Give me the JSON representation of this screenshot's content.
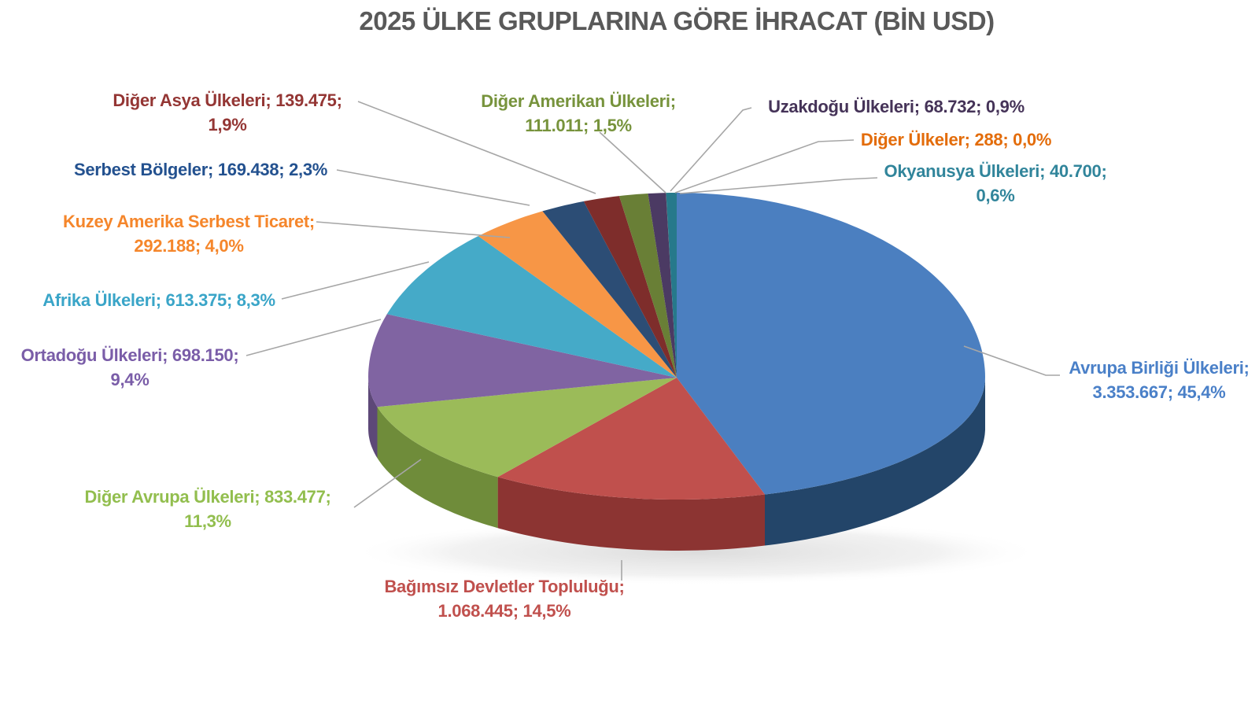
{
  "chart_data": {
    "type": "pie",
    "style": "3d-pie",
    "title": "2025 ÜLKE GRUPLARINA GÖRE İHRACAT (BİN USD)",
    "title_color": "#595959",
    "unit": "BİN USD",
    "label_format": "name; value; percent",
    "legend": "none",
    "leader_line_color": "#A6A6A6",
    "slices": [
      {
        "name": "Avrupa Birliği Ülkeleri",
        "value": 3353667,
        "value_text": "3.353.667",
        "pct_text": "45,4%",
        "color": "#4B7FC0",
        "side_color": "#234569",
        "label_color": "#4A80C8",
        "label_lines": [
          "Avrupa Birliği Ülkeleri;",
          "3.353.667; 45,4%"
        ]
      },
      {
        "name": "Bağımsız Devletler Topluluğu",
        "value": 1068445,
        "value_text": "1.068.445",
        "pct_text": "14,5%",
        "color": "#C0504D",
        "side_color": "#8C3432",
        "label_color": "#C0504D",
        "label_lines": [
          "Bağımsız Devletler Topluluğu;",
          "1.068.445; 14,5%"
        ]
      },
      {
        "name": "Diğer Avrupa Ülkeleri",
        "value": 833477,
        "value_text": "833.477",
        "pct_text": "11,3%",
        "color": "#9BBB59",
        "side_color": "#6F8C3A",
        "label_color": "#92BE4E",
        "label_lines": [
          "Diğer Avrupa Ülkeleri; 833.477;",
          "11,3%"
        ]
      },
      {
        "name": "Ortadoğu Ülkeleri",
        "value": 698150,
        "value_text": "698.150",
        "pct_text": "9,4%",
        "color": "#8064A2",
        "side_color": "#5D4878",
        "label_color": "#7A5DA8",
        "label_lines": [
          "Ortadoğu Ülkeleri; 698.150;",
          "9,4%"
        ]
      },
      {
        "name": "Afrika Ülkeleri",
        "value": 613375,
        "value_text": "613.375",
        "pct_text": "8,3%",
        "color": "#45AAC8",
        "side_color": "#31859B",
        "label_color": "#3AA5C8",
        "label_lines": [
          "Afrika Ülkeleri; 613.375; 8,3%"
        ]
      },
      {
        "name": "Kuzey Amerika Serbest Ticaret",
        "value": 292188,
        "value_text": "292.188",
        "pct_text": "4,0%",
        "color": "#F79646",
        "side_color": "#B65708",
        "label_color": "#F5862B",
        "label_lines": [
          "Kuzey Amerika Serbest Ticaret;",
          "292.188; 4,0%"
        ]
      },
      {
        "name": "Serbest Bölgeler",
        "value": 169438,
        "value_text": "169.438",
        "pct_text": "2,3%",
        "color": "#2C4D75",
        "side_color": "#1F3757",
        "label_color": "#23518F",
        "label_lines": [
          "Serbest Bölgeler; 169.438; 2,3%"
        ]
      },
      {
        "name": "Diğer Asya Ülkeleri",
        "value": 139475,
        "value_text": "139.475",
        "pct_text": "1,9%",
        "color": "#7E2D2B",
        "side_color": "#5E211F",
        "label_color": "#943634",
        "label_lines": [
          "Diğer Asya Ülkeleri; 139.475;",
          "1,9%"
        ]
      },
      {
        "name": "Diğer Amerikan Ülkeleri",
        "value": 111011,
        "value_text": "111.011",
        "pct_text": "1,5%",
        "color": "#697F36",
        "side_color": "#4A5C26",
        "label_color": "#77933C",
        "label_lines": [
          "Diğer Amerikan Ülkeleri;",
          "111.011; 1,5%"
        ]
      },
      {
        "name": "Uzakdoğu Ülkeleri",
        "value": 68732,
        "value_text": "68.732",
        "pct_text": "0,9%",
        "color": "#4B3A63",
        "side_color": "#372A4A",
        "label_color": "#453358",
        "label_lines": [
          "Uzakdoğu Ülkeleri; 68.732; 0,9%"
        ]
      },
      {
        "name": "Diğer Ülkeler",
        "value": 288,
        "value_text": "288",
        "pct_text": "0,0%",
        "color": "#B65708",
        "side_color": "#8A4206",
        "label_color": "#E36C0A",
        "label_lines": [
          "Diğer Ülkeler; 288; 0,0%"
        ]
      },
      {
        "name": "Okyanusya Ülkeleri",
        "value": 40700,
        "value_text": "40.700",
        "pct_text": "0,6%",
        "color": "#26798B",
        "side_color": "#1B5A68",
        "label_color": "#31859B",
        "label_lines": [
          "Okyanusya Ülkeleri; 40.700;",
          "0,6%"
        ]
      }
    ]
  }
}
